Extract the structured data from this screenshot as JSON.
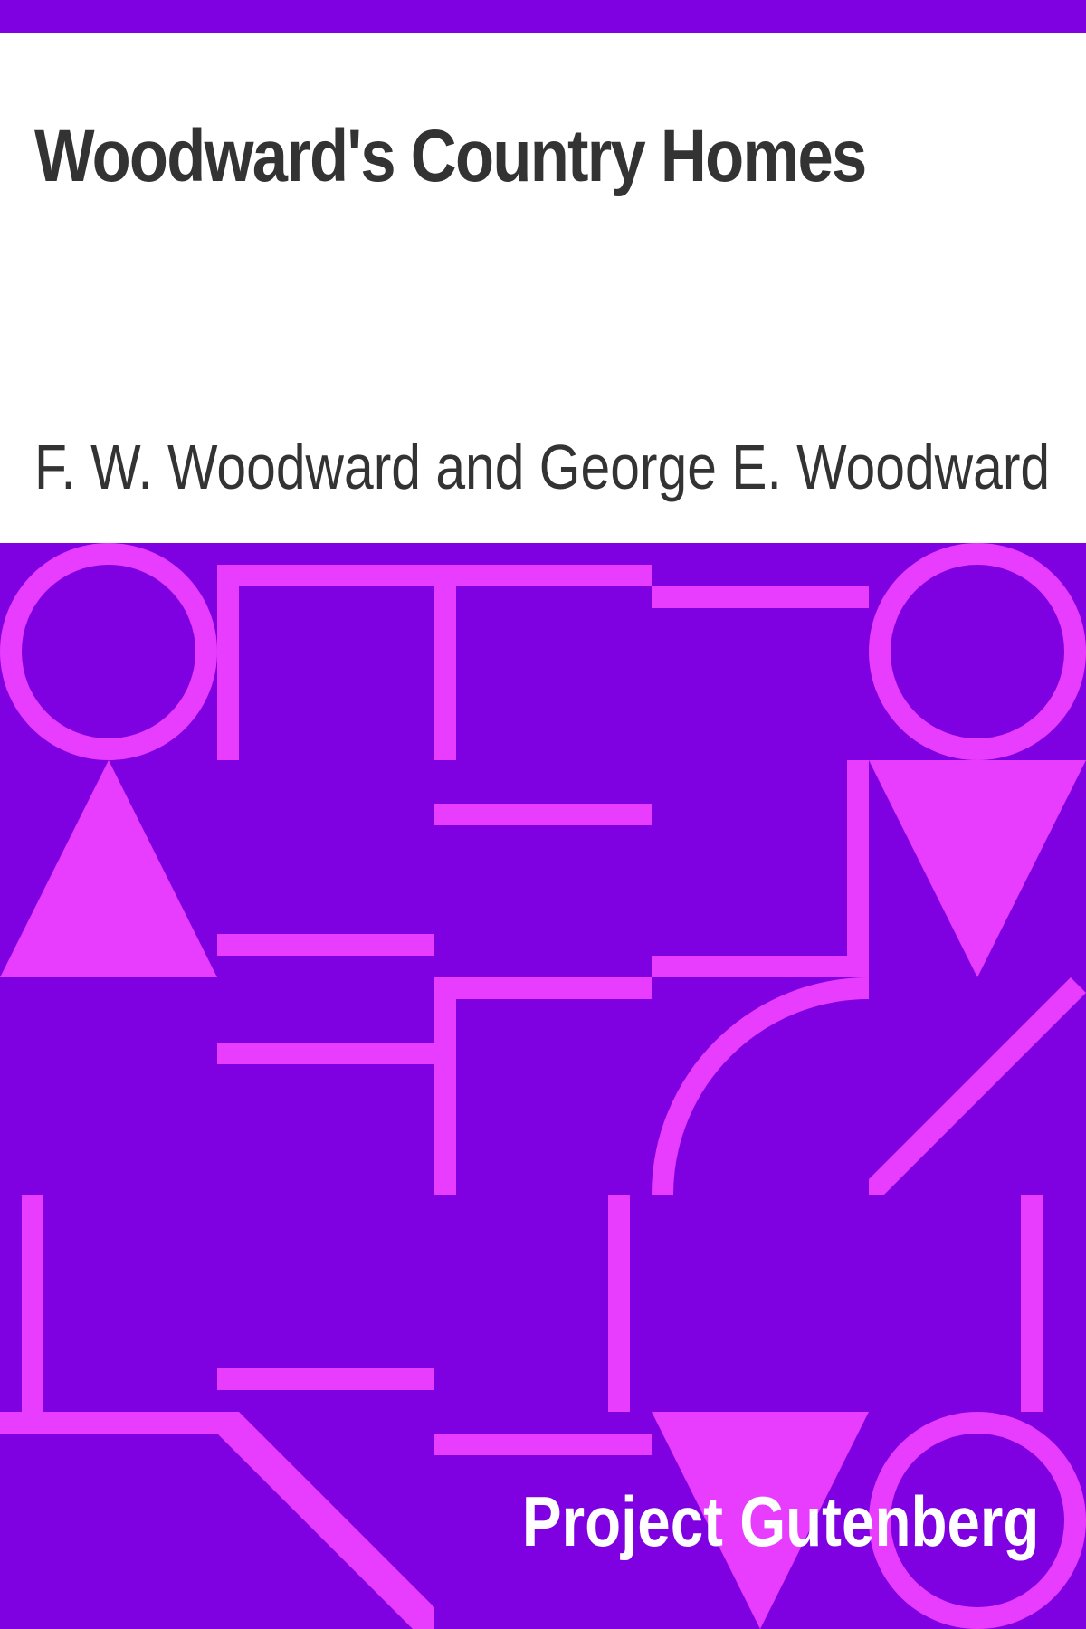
{
  "book": {
    "title": "Woodward's Country Homes",
    "author": "F. W. Woodward and George E. Woodward",
    "publisher": "Project Gutenberg"
  },
  "colors": {
    "background": "#7f00e0",
    "pattern": "#e83cff",
    "text_dark": "#333333",
    "text_light": "#ffffff",
    "header_bg": "#ffffff"
  }
}
